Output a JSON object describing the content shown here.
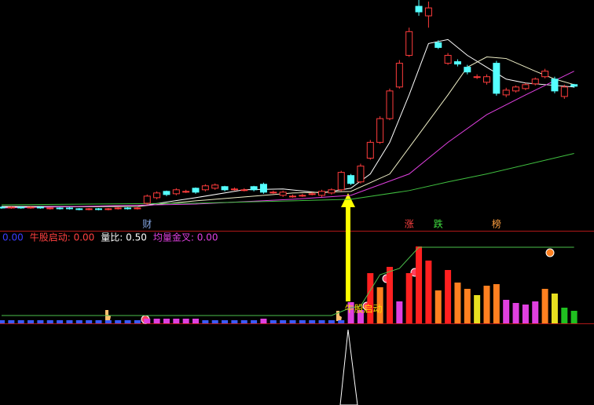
{
  "chart_data": [
    {
      "type": "candlestick",
      "up_color": "#ff3c3c",
      "down_color": "#54ffff",
      "open": [
        3.8,
        3.7,
        3.8,
        3.7,
        3.8,
        3.6,
        3.7,
        3.7,
        3.6,
        3.5,
        3.6,
        3.5,
        3.6,
        3.7,
        3.6,
        4.3,
        5.0,
        5.8,
        5.5,
        5.8,
        6.2,
        6.0,
        6.2,
        6.4,
        6.1,
        6.0,
        6.4,
        6.7,
        5.7,
        5.3,
        5.2,
        5.3,
        5.5,
        5.3,
        5.6,
        6.0,
        7.8,
        7.0,
        10.0,
        12.0,
        15.0,
        19.0,
        23.0,
        29.2,
        28.0,
        24.6,
        22.0,
        22.2,
        21.5,
        20.3,
        19.6,
        22.0,
        18.0,
        18.5,
        18.8,
        19.4,
        20.3,
        20.0,
        17.8,
        19.3
      ],
      "close": [
        3.7,
        3.8,
        3.7,
        3.8,
        3.7,
        3.7,
        3.6,
        3.6,
        3.5,
        3.6,
        3.5,
        3.6,
        3.7,
        3.6,
        3.7,
        5.2,
        5.6,
        5.4,
        6.0,
        5.8,
        5.7,
        6.5,
        6.6,
        6.0,
        6.1,
        6.0,
        6.0,
        5.7,
        5.7,
        5.7,
        5.2,
        5.3,
        5.5,
        5.8,
        6.0,
        8.2,
        6.8,
        9.0,
        12.0,
        15.0,
        18.5,
        22.0,
        26.0,
        28.5,
        29.0,
        24.0,
        23.0,
        21.9,
        20.9,
        20.3,
        20.3,
        18.2,
        18.6,
        19.0,
        19.3,
        20.0,
        21.0,
        18.5,
        19.0,
        19.1
      ],
      "high": [
        3.9,
        3.9,
        3.9,
        3.9,
        3.9,
        3.8,
        3.8,
        3.8,
        3.7,
        3.7,
        3.7,
        3.7,
        3.8,
        3.8,
        3.8,
        5.4,
        5.8,
        5.9,
        6.2,
        6.0,
        6.3,
        6.7,
        6.8,
        6.5,
        6.3,
        6.2,
        6.5,
        6.9,
        5.9,
        5.9,
        5.4,
        5.5,
        5.7,
        6.0,
        6.2,
        8.4,
        8.0,
        9.3,
        12.3,
        15.3,
        18.8,
        22.4,
        26.5,
        30.0,
        29.8,
        24.9,
        23.3,
        22.5,
        21.8,
        20.6,
        20.6,
        22.3,
        18.9,
        19.2,
        19.5,
        20.2,
        21.3,
        20.3,
        19.3,
        19.4
      ],
      "low": [
        3.6,
        3.6,
        3.6,
        3.6,
        3.6,
        3.5,
        3.5,
        3.5,
        3.4,
        3.4,
        3.4,
        3.4,
        3.5,
        3.5,
        3.5,
        4.1,
        4.8,
        5.2,
        5.3,
        5.6,
        5.5,
        5.8,
        6.0,
        5.8,
        5.9,
        5.8,
        5.8,
        5.5,
        5.5,
        5.1,
        5.0,
        5.1,
        5.3,
        5.1,
        5.4,
        5.8,
        6.6,
        6.8,
        9.8,
        11.8,
        14.8,
        18.8,
        22.8,
        28.0,
        26.5,
        23.8,
        21.8,
        21.6,
        20.6,
        20.0,
        19.3,
        17.9,
        17.7,
        18.3,
        18.6,
        19.2,
        20.1,
        18.2,
        17.5,
        18.9
      ],
      "series": [
        {
          "color": "#ffffff",
          "x": [
            0,
            14,
            20,
            25,
            29,
            33,
            36,
            38,
            40,
            42,
            44,
            46,
            48,
            50,
            52,
            54,
            57,
            59
          ],
          "values": [
            3.9,
            3.9,
            5.0,
            6.0,
            6.1,
            5.6,
            6.2,
            8,
            12,
            18,
            24.5,
            25,
            23,
            21.5,
            20,
            19.5,
            19.2,
            19
          ]
        },
        {
          "color": "#f0f0c8",
          "x": [
            0,
            14,
            20,
            30,
            36,
            40,
            43,
            46,
            48,
            50,
            52,
            55,
            57,
            59
          ],
          "values": [
            3.8,
            3.9,
            4.6,
            5.6,
            5.8,
            8,
            13,
            18,
            21.5,
            22.8,
            22.6,
            21,
            20,
            19.3
          ]
        },
        {
          "color": "#e040e0",
          "x": [
            0,
            20,
            30,
            36,
            42,
            46,
            50,
            54,
            59
          ],
          "values": [
            3.7,
            4.2,
            4.8,
            5.3,
            8,
            12,
            15.5,
            18,
            21
          ]
        },
        {
          "color": "#40c040",
          "x": [
            0,
            20,
            30,
            36,
            42,
            46,
            50,
            59
          ],
          "values": [
            4.1,
            4.3,
            4.6,
            4.8,
            5.9,
            7,
            8,
            10.6
          ]
        }
      ],
      "annotations": [
        {
          "text": "财",
          "x": 15,
          "color": "#86a8e6"
        },
        {
          "text": "涨",
          "x": 42,
          "color": "#ff4040"
        },
        {
          "text": "跌",
          "x": 45,
          "color": "#40e040"
        },
        {
          "text": "榜",
          "x": 51,
          "color": "#ffa040"
        }
      ]
    },
    {
      "type": "bar",
      "header": [
        {
          "text": "0.00",
          "color": "#3c3cff"
        },
        {
          "text": "牛股启动: 0.00",
          "color": "#ff4040"
        },
        {
          "text": "量比: 0.50",
          "color": "#ffffff"
        },
        {
          "text": "均量金叉: 0.00",
          "color": "#e040e0"
        }
      ],
      "values": [
        4,
        4,
        4,
        4,
        4,
        4,
        4,
        4,
        4,
        4,
        4,
        4,
        4,
        4,
        4,
        6,
        6,
        6,
        6,
        6,
        6,
        4,
        4,
        4,
        4,
        4,
        4,
        6,
        4,
        4,
        4,
        4,
        4,
        4,
        4,
        4,
        27,
        17,
        64,
        46,
        72,
        28,
        64,
        98,
        80,
        42,
        68,
        52,
        44,
        36,
        48,
        50,
        30,
        26,
        24,
        28,
        44,
        38,
        20,
        16
      ],
      "colors": [
        "#3c5aff",
        "#3c5aff",
        "#3c5aff",
        "#3c5aff",
        "#3c5aff",
        "#3c5aff",
        "#3c5aff",
        "#3c5aff",
        "#3c5aff",
        "#3c5aff",
        "#3c5aff",
        "#3c5aff",
        "#3c5aff",
        "#3c5aff",
        "#3c5aff",
        "#e040e0",
        "#e040e0",
        "#e040e0",
        "#e040e0",
        "#e040e0",
        "#e040e0",
        "#3c5aff",
        "#3c5aff",
        "#3c5aff",
        "#3c5aff",
        "#3c5aff",
        "#3c5aff",
        "#e040e0",
        "#3c5aff",
        "#3c5aff",
        "#3c5aff",
        "#3c5aff",
        "#3c5aff",
        "#3c5aff",
        "#3c5aff",
        "#3c5aff",
        "#e040e0",
        "#e040e0",
        "#ff2020",
        "#ff8020",
        "#ff2020",
        "#e040e0",
        "#ff2020",
        "#ff2020",
        "#ff2020",
        "#ff8020",
        "#ff2020",
        "#ff8020",
        "#ff8020",
        "#e8e020",
        "#ff8020",
        "#ff8020",
        "#e040e0",
        "#e040e0",
        "#e040e0",
        "#e040e0",
        "#ff8020",
        "#e8e020",
        "#20c020",
        "#20c020"
      ],
      "series": [
        {
          "color": "#4cc24c",
          "x": [
            0,
            34,
            36,
            37,
            39,
            41,
            43,
            59
          ],
          "values": [
            10,
            10,
            20,
            22,
            62,
            70,
            97,
            97
          ]
        }
      ],
      "annotations": [
        {
          "text": "牛股启动",
          "x": 36,
          "color": "#ffd700"
        }
      ]
    }
  ]
}
